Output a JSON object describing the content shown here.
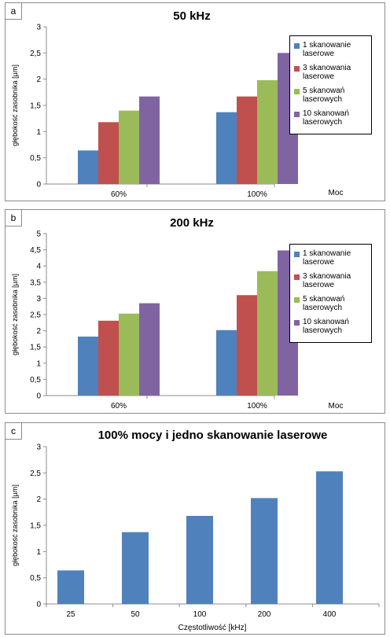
{
  "colors": {
    "series": [
      "#4f81bd",
      "#c0504d",
      "#9bbb59",
      "#8064a2"
    ]
  },
  "chart_data": [
    {
      "panel_label": "a",
      "type": "bar",
      "title": "50 kHz",
      "ylabel": "głębokość zasobnika [µm]",
      "xlabel": "Moc",
      "categories": [
        "60%",
        "100%"
      ],
      "ylim": [
        0,
        3
      ],
      "yticks": [
        "0",
        "0,5",
        "1",
        "1,5",
        "2",
        "2,5",
        "3"
      ],
      "grid": false,
      "legend_position": "right",
      "series": [
        {
          "name": "1 skanowanie laserowe",
          "values": [
            0.64,
            1.37
          ]
        },
        {
          "name": "3 skanowania laserowe",
          "values": [
            1.18,
            1.67
          ]
        },
        {
          "name": "5 skanowań laserowych",
          "values": [
            1.4,
            1.98
          ]
        },
        {
          "name": "10 skanowań laserowych",
          "values": [
            1.67,
            2.5
          ]
        }
      ]
    },
    {
      "panel_label": "b",
      "type": "bar",
      "title": "200 kHz",
      "ylabel": "głębokość zasobnika [µm]",
      "xlabel": "Moc",
      "categories": [
        "60%",
        "100%"
      ],
      "ylim": [
        0,
        5
      ],
      "yticks": [
        "0",
        "0,5",
        "1",
        "1,5",
        "2",
        "2,5",
        "3",
        "3,5",
        "4",
        "4,5",
        "5"
      ],
      "grid": false,
      "legend_position": "right",
      "series": [
        {
          "name": "1 skanowanie laserowe",
          "values": [
            1.82,
            2.02
          ]
        },
        {
          "name": "3 skanowania laserowe",
          "values": [
            2.31,
            3.1
          ]
        },
        {
          "name": "5 skanowań laserowych",
          "values": [
            2.53,
            3.84
          ]
        },
        {
          "name": "10 skanowań laserowych",
          "values": [
            2.85,
            4.48
          ]
        }
      ]
    },
    {
      "panel_label": "c",
      "type": "bar",
      "title": "100% mocy i jedno skanowanie laserowe",
      "ylabel": "głębokość zasobnika [µm]",
      "xlabel": "Częstotliwość [kHz]",
      "categories": [
        "25",
        "50",
        "100",
        "200",
        "400"
      ],
      "ylim": [
        0,
        3
      ],
      "yticks": [
        "0",
        "0,5",
        "1",
        "1,5",
        "2",
        "2,5",
        "3"
      ],
      "grid": false,
      "series": [
        {
          "values": [
            0.64,
            1.37,
            1.68,
            2.02,
            2.53
          ]
        }
      ]
    }
  ]
}
